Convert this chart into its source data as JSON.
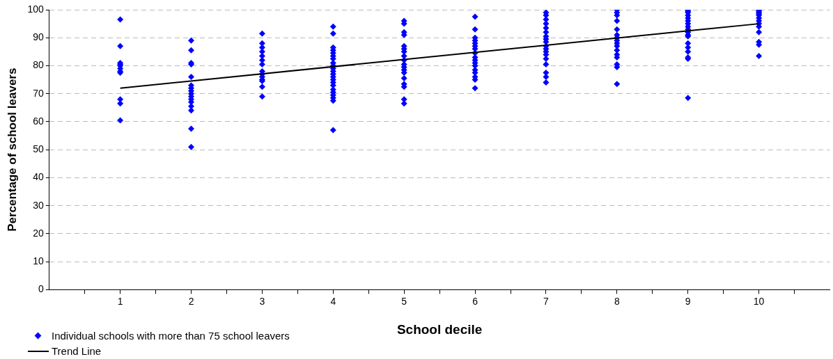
{
  "chart_data": {
    "type": "scatter",
    "xlabel": "School decile",
    "ylabel": "Percentage of school leavers",
    "xlim": [
      0,
      11
    ],
    "ylim": [
      0,
      100
    ],
    "xticks": [
      {
        "value": 0.5,
        "label": null
      },
      1,
      {
        "value": 1.5,
        "label": null
      },
      2,
      {
        "value": 2.5,
        "label": null
      },
      3,
      {
        "value": 3.5,
        "label": null
      },
      4,
      {
        "value": 4.5,
        "label": null
      },
      5,
      {
        "value": 5.5,
        "label": null
      },
      6,
      {
        "value": 6.5,
        "label": null
      },
      7,
      {
        "value": 7.5,
        "label": null
      },
      8,
      {
        "value": 8.5,
        "label": null
      },
      9,
      {
        "value": 9.5,
        "label": null
      },
      10,
      {
        "value": 10.5,
        "label": null
      }
    ],
    "yticks": [
      0,
      10,
      20,
      30,
      40,
      50,
      60,
      70,
      80,
      90,
      100
    ],
    "grid": "y",
    "legend": "bottom left",
    "marker": "diamond",
    "series": [
      {
        "name": "Individual schools with more than 75 school leavers",
        "color": "#0000ff",
        "x": [
          1,
          1,
          1,
          1,
          1,
          1,
          1,
          1,
          1,
          1,
          1,
          2,
          2,
          2,
          2,
          2,
          2,
          2,
          2,
          2,
          2,
          2,
          2,
          2,
          2,
          2,
          2,
          3,
          3,
          3,
          3,
          3,
          3,
          3,
          3,
          3,
          3,
          3,
          3,
          3,
          3,
          4,
          4,
          4,
          4,
          4,
          4,
          4,
          4,
          4,
          4,
          4,
          4,
          4,
          4,
          4,
          4,
          4,
          4,
          4,
          4,
          4,
          4,
          5,
          5,
          5,
          5,
          5,
          5,
          5,
          5,
          5,
          5,
          5,
          5,
          5,
          5,
          5,
          5,
          5,
          5,
          6,
          6,
          6,
          6,
          6,
          6,
          6,
          6,
          6,
          6,
          6,
          6,
          6,
          6,
          6,
          6,
          6,
          7,
          7,
          7,
          7,
          7,
          7,
          7,
          7,
          7,
          7,
          7,
          7,
          7,
          7,
          7,
          7,
          7,
          7,
          8,
          8,
          8,
          8,
          8,
          8,
          8,
          8,
          8,
          8,
          8,
          8,
          8,
          8,
          8,
          8,
          9,
          9,
          9,
          9,
          9,
          9,
          9,
          9,
          9,
          9,
          9,
          9,
          9,
          9,
          9,
          9,
          9,
          9,
          10,
          10,
          10,
          10,
          10,
          10,
          10,
          10,
          10,
          10,
          10,
          10,
          10
        ],
        "values": [
          96.5,
          87,
          81,
          80.5,
          80,
          79,
          78,
          77.5,
          68,
          66.5,
          60.5,
          89,
          85.5,
          81,
          80.5,
          76,
          73,
          72,
          71,
          70,
          69,
          68,
          67,
          65.5,
          64,
          57.5,
          51,
          91.5,
          88,
          86.5,
          85,
          83.5,
          82,
          80.5,
          78,
          77,
          76,
          75,
          74.5,
          72.5,
          69,
          94,
          91.5,
          86.5,
          85.5,
          84.5,
          83.5,
          82.5,
          81,
          80,
          79,
          78,
          77,
          76,
          75,
          74,
          73,
          71.5,
          70.5,
          69.5,
          68.5,
          67.5,
          57,
          96,
          95,
          92,
          91,
          87,
          86,
          85,
          83.5,
          82,
          80.5,
          79.5,
          78.5,
          77.5,
          75.5,
          73.5,
          72.5,
          68,
          66.5,
          97.5,
          93,
          90,
          89,
          88,
          87,
          86,
          84.5,
          83,
          82,
          81,
          80,
          78.5,
          77.5,
          76,
          75,
          72,
          99,
          98,
          96.5,
          95,
          93.5,
          92,
          90.5,
          89.5,
          88.5,
          87,
          86,
          85,
          84,
          82.5,
          80.5,
          77.5,
          76,
          74,
          100,
          99,
          98,
          96,
          93,
          91,
          90,
          89,
          88,
          87,
          85.5,
          84,
          83,
          80.5,
          79.5,
          73.5,
          100,
          99.5,
          99,
          98,
          97,
          96,
          95,
          94,
          93,
          92,
          91,
          90.5,
          88,
          86.5,
          85,
          83,
          82.5,
          68.5,
          100,
          99.5,
          99,
          98.5,
          98,
          97,
          96,
          95,
          94,
          92,
          88.5,
          87.5,
          83.5
        ]
      },
      {
        "name": "Trend Line",
        "color": "#000000",
        "type": "line",
        "marker": "none",
        "line_style": "solid",
        "x": [
          1,
          10
        ],
        "values": [
          72,
          95
        ]
      }
    ]
  }
}
